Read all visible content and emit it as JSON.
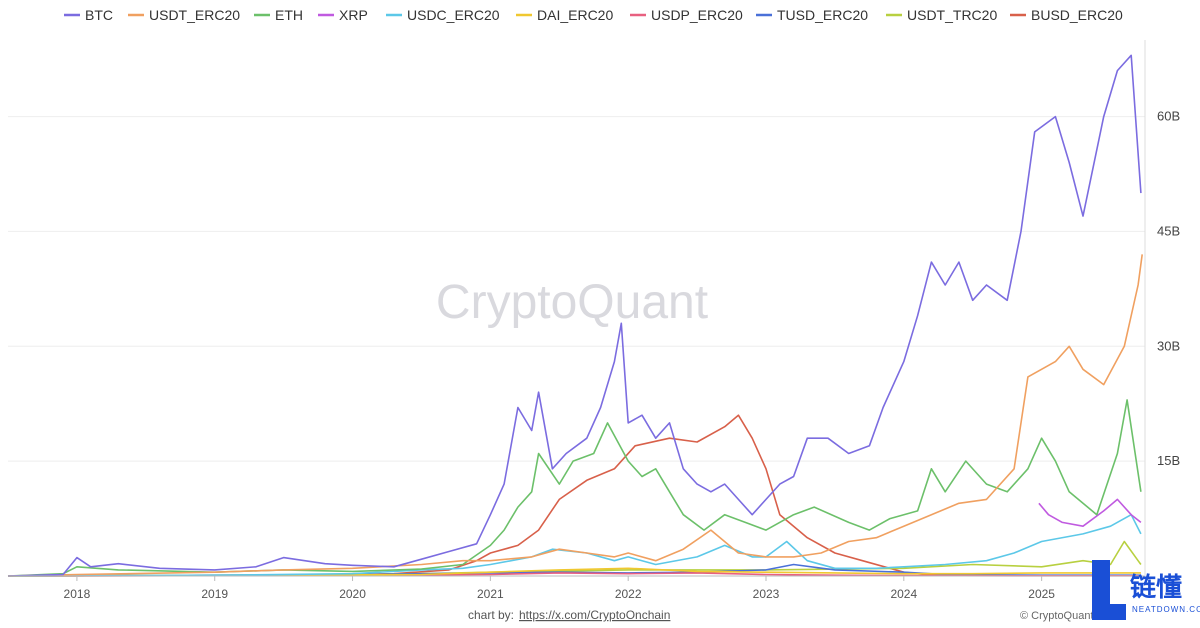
{
  "watermark": "CryptoQuant",
  "credit": {
    "prefix": "chart by:",
    "link": "https://x.com/CryptoOnchain"
  },
  "copyright": "© CryptoQuant",
  "logo": {
    "text": "链懂",
    "sub": "NEATDOWN.COM"
  },
  "chart_data": {
    "type": "line",
    "title": "",
    "xlabel": "",
    "ylabel": "",
    "ylim": [
      0,
      70000000000
    ],
    "yticks": [
      {
        "value": 15000000000,
        "label": "15B"
      },
      {
        "value": 30000000000,
        "label": "30B"
      },
      {
        "value": 45000000000,
        "label": "45B"
      },
      {
        "value": 60000000000,
        "label": "60B"
      }
    ],
    "y_axis_position": "right",
    "xlim": [
      2017.5,
      2025.75
    ],
    "xticks": [
      "2018",
      "2019",
      "2020",
      "2021",
      "2022",
      "2023",
      "2024",
      "2025"
    ],
    "legend_position": "top",
    "grid": "horizontal",
    "series": [
      {
        "name": "BTC",
        "color": "#7b6ce0",
        "points": [
          [
            2017.5,
            0
          ],
          [
            2017.9,
            0.2
          ],
          [
            2018.0,
            2.4
          ],
          [
            2018.1,
            1.2
          ],
          [
            2018.3,
            1.6
          ],
          [
            2018.6,
            1.0
          ],
          [
            2019.0,
            0.8
          ],
          [
            2019.3,
            1.2
          ],
          [
            2019.5,
            2.4
          ],
          [
            2019.8,
            1.6
          ],
          [
            2020.0,
            1.4
          ],
          [
            2020.3,
            1.2
          ],
          [
            2020.5,
            2.2
          ],
          [
            2020.7,
            3.2
          ],
          [
            2020.9,
            4.2
          ],
          [
            2021.0,
            8.0
          ],
          [
            2021.1,
            12.0
          ],
          [
            2021.2,
            22.0
          ],
          [
            2021.3,
            19.0
          ],
          [
            2021.35,
            24.0
          ],
          [
            2021.45,
            14.0
          ],
          [
            2021.55,
            16.0
          ],
          [
            2021.7,
            18.0
          ],
          [
            2021.8,
            22.0
          ],
          [
            2021.9,
            28.0
          ],
          [
            2021.95,
            33.0
          ],
          [
            2022.0,
            20.0
          ],
          [
            2022.1,
            21.0
          ],
          [
            2022.2,
            18.0
          ],
          [
            2022.3,
            20.0
          ],
          [
            2022.4,
            14.0
          ],
          [
            2022.5,
            12.0
          ],
          [
            2022.6,
            11.0
          ],
          [
            2022.7,
            12.0
          ],
          [
            2022.8,
            10.0
          ],
          [
            2022.9,
            8.0
          ],
          [
            2023.0,
            10.0
          ],
          [
            2023.1,
            12.0
          ],
          [
            2023.2,
            13.0
          ],
          [
            2023.3,
            18.0
          ],
          [
            2023.45,
            18.0
          ],
          [
            2023.6,
            16.0
          ],
          [
            2023.75,
            17.0
          ],
          [
            2023.85,
            22.0
          ],
          [
            2024.0,
            28.0
          ],
          [
            2024.1,
            34.0
          ],
          [
            2024.2,
            41.0
          ],
          [
            2024.3,
            38.0
          ],
          [
            2024.4,
            41.0
          ],
          [
            2024.5,
            36.0
          ],
          [
            2024.6,
            38.0
          ],
          [
            2024.75,
            36.0
          ],
          [
            2024.85,
            45.0
          ],
          [
            2024.95,
            58.0
          ],
          [
            2025.1,
            60.0
          ],
          [
            2025.2,
            54.0
          ],
          [
            2025.3,
            47.0
          ],
          [
            2025.45,
            60.0
          ],
          [
            2025.55,
            66.0
          ],
          [
            2025.65,
            68.0
          ],
          [
            2025.72,
            50.0
          ]
        ]
      },
      {
        "name": "USDT_ERC20",
        "color": "#f0a060",
        "points": [
          [
            2017.5,
            0
          ],
          [
            2018.0,
            0.2
          ],
          [
            2019.0,
            0.5
          ],
          [
            2019.5,
            0.8
          ],
          [
            2020.0,
            1.0
          ],
          [
            2020.5,
            1.5
          ],
          [
            2020.8,
            2.0
          ],
          [
            2021.0,
            2.0
          ],
          [
            2021.3,
            2.5
          ],
          [
            2021.5,
            3.5
          ],
          [
            2021.7,
            3.0
          ],
          [
            2021.9,
            2.5
          ],
          [
            2022.0,
            3.0
          ],
          [
            2022.2,
            2.0
          ],
          [
            2022.4,
            3.5
          ],
          [
            2022.6,
            6.0
          ],
          [
            2022.8,
            3.0
          ],
          [
            2023.0,
            2.5
          ],
          [
            2023.2,
            2.5
          ],
          [
            2023.4,
            3.0
          ],
          [
            2023.6,
            4.5
          ],
          [
            2023.8,
            5.0
          ],
          [
            2024.0,
            6.5
          ],
          [
            2024.2,
            8.0
          ],
          [
            2024.4,
            9.5
          ],
          [
            2024.6,
            10.0
          ],
          [
            2024.8,
            14.0
          ],
          [
            2024.9,
            26.0
          ],
          [
            2025.1,
            28.0
          ],
          [
            2025.2,
            30.0
          ],
          [
            2025.3,
            27.0
          ],
          [
            2025.45,
            25.0
          ],
          [
            2025.6,
            30.0
          ],
          [
            2025.7,
            38.0
          ],
          [
            2025.73,
            42.0
          ]
        ]
      },
      {
        "name": "ETH",
        "color": "#6cc06a",
        "points": [
          [
            2017.5,
            0
          ],
          [
            2017.9,
            0.3
          ],
          [
            2018.0,
            1.2
          ],
          [
            2018.3,
            0.8
          ],
          [
            2019.0,
            0.5
          ],
          [
            2019.5,
            0.8
          ],
          [
            2020.0,
            0.6
          ],
          [
            2020.5,
            0.9
          ],
          [
            2020.8,
            1.5
          ],
          [
            2021.0,
            4.0
          ],
          [
            2021.1,
            6.0
          ],
          [
            2021.2,
            9.0
          ],
          [
            2021.3,
            11.0
          ],
          [
            2021.35,
            16.0
          ],
          [
            2021.5,
            12.0
          ],
          [
            2021.6,
            15.0
          ],
          [
            2021.75,
            16.0
          ],
          [
            2021.85,
            20.0
          ],
          [
            2022.0,
            15.0
          ],
          [
            2022.1,
            13.0
          ],
          [
            2022.2,
            14.0
          ],
          [
            2022.3,
            11.0
          ],
          [
            2022.4,
            8.0
          ],
          [
            2022.55,
            6.0
          ],
          [
            2022.7,
            8.0
          ],
          [
            2022.85,
            7.0
          ],
          [
            2023.0,
            6.0
          ],
          [
            2023.2,
            8.0
          ],
          [
            2023.35,
            9.0
          ],
          [
            2023.6,
            7.0
          ],
          [
            2023.75,
            6.0
          ],
          [
            2023.9,
            7.5
          ],
          [
            2024.1,
            8.5
          ],
          [
            2024.2,
            14.0
          ],
          [
            2024.3,
            11.0
          ],
          [
            2024.45,
            15.0
          ],
          [
            2024.6,
            12.0
          ],
          [
            2024.75,
            11.0
          ],
          [
            2024.9,
            14.0
          ],
          [
            2025.0,
            18.0
          ],
          [
            2025.1,
            15.0
          ],
          [
            2025.2,
            11.0
          ],
          [
            2025.4,
            8.0
          ],
          [
            2025.55,
            16.0
          ],
          [
            2025.62,
            23.0
          ],
          [
            2025.72,
            11.0
          ]
        ]
      },
      {
        "name": "XRP",
        "color": "#c05ae0",
        "points": [
          [
            2024.98,
            9.5
          ],
          [
            2025.05,
            8.0
          ],
          [
            2025.15,
            7.0
          ],
          [
            2025.3,
            6.5
          ],
          [
            2025.45,
            8.5
          ],
          [
            2025.55,
            10.0
          ],
          [
            2025.65,
            8.0
          ],
          [
            2025.72,
            7.0
          ]
        ]
      },
      {
        "name": "USDC_ERC20",
        "color": "#5cc8e8",
        "points": [
          [
            2017.5,
            0
          ],
          [
            2019.0,
            0.1
          ],
          [
            2020.0,
            0.3
          ],
          [
            2020.5,
            0.8
          ],
          [
            2020.8,
            1.0
          ],
          [
            2021.0,
            1.5
          ],
          [
            2021.3,
            2.5
          ],
          [
            2021.45,
            3.5
          ],
          [
            2021.7,
            3.0
          ],
          [
            2021.9,
            2.0
          ],
          [
            2022.0,
            2.5
          ],
          [
            2022.2,
            1.5
          ],
          [
            2022.5,
            2.5
          ],
          [
            2022.7,
            4.0
          ],
          [
            2022.9,
            2.5
          ],
          [
            2023.0,
            2.5
          ],
          [
            2023.15,
            4.5
          ],
          [
            2023.3,
            2.0
          ],
          [
            2023.5,
            1.0
          ],
          [
            2023.8,
            1.0
          ],
          [
            2024.0,
            1.2
          ],
          [
            2024.3,
            1.5
          ],
          [
            2024.6,
            2.0
          ],
          [
            2024.8,
            3.0
          ],
          [
            2025.0,
            4.5
          ],
          [
            2025.3,
            5.5
          ],
          [
            2025.5,
            6.5
          ],
          [
            2025.65,
            8.0
          ],
          [
            2025.72,
            5.5
          ]
        ]
      },
      {
        "name": "DAI_ERC20",
        "color": "#f0c830",
        "points": [
          [
            2017.5,
            0
          ],
          [
            2020.5,
            0.2
          ],
          [
            2021.0,
            0.5
          ],
          [
            2021.5,
            0.8
          ],
          [
            2022.0,
            1.0
          ],
          [
            2022.5,
            0.6
          ],
          [
            2023.0,
            0.5
          ],
          [
            2023.5,
            0.4
          ],
          [
            2024.0,
            0.3
          ],
          [
            2024.5,
            0.3
          ],
          [
            2025.0,
            0.4
          ],
          [
            2025.72,
            0.4
          ]
        ]
      },
      {
        "name": "USDP_ERC20",
        "color": "#e86080",
        "points": [
          [
            2017.5,
            0
          ],
          [
            2019.0,
            0.05
          ],
          [
            2020.0,
            0.1
          ],
          [
            2021.0,
            0.2
          ],
          [
            2021.5,
            0.4
          ],
          [
            2022.0,
            0.3
          ],
          [
            2022.5,
            0.4
          ],
          [
            2023.0,
            0.2
          ],
          [
            2023.5,
            0.1
          ],
          [
            2024.0,
            0.05
          ],
          [
            2025.0,
            0.03
          ],
          [
            2025.72,
            0.03
          ]
        ]
      },
      {
        "name": "TUSD_ERC20",
        "color": "#4a70d8",
        "points": [
          [
            2017.5,
            0
          ],
          [
            2019.0,
            0.1
          ],
          [
            2020.0,
            0.2
          ],
          [
            2021.0,
            0.4
          ],
          [
            2021.5,
            0.5
          ],
          [
            2022.0,
            0.4
          ],
          [
            2022.5,
            0.5
          ],
          [
            2023.0,
            0.8
          ],
          [
            2023.2,
            1.5
          ],
          [
            2023.5,
            0.8
          ],
          [
            2024.0,
            0.5
          ],
          [
            2024.3,
            0.2
          ],
          [
            2025.0,
            0.1
          ],
          [
            2025.72,
            0.1
          ]
        ]
      },
      {
        "name": "USDT_TRC20",
        "color": "#b8d040",
        "points": [
          [
            2017.5,
            0
          ],
          [
            2019.5,
            0.1
          ],
          [
            2020.5,
            0.3
          ],
          [
            2021.0,
            0.5
          ],
          [
            2022.0,
            0.8
          ],
          [
            2023.0,
            0.8
          ],
          [
            2024.0,
            1.0
          ],
          [
            2024.5,
            1.5
          ],
          [
            2025.0,
            1.2
          ],
          [
            2025.3,
            2.0
          ],
          [
            2025.5,
            1.5
          ],
          [
            2025.6,
            4.5
          ],
          [
            2025.7,
            2.0
          ],
          [
            2025.72,
            1.5
          ]
        ]
      },
      {
        "name": "BUSD_ERC20",
        "color": "#d8604a",
        "points": [
          [
            2017.5,
            0
          ],
          [
            2019.8,
            0.1
          ],
          [
            2020.3,
            0.3
          ],
          [
            2020.7,
            0.8
          ],
          [
            2020.9,
            2.0
          ],
          [
            2021.0,
            3.0
          ],
          [
            2021.2,
            4.0
          ],
          [
            2021.35,
            6.0
          ],
          [
            2021.5,
            10.0
          ],
          [
            2021.7,
            12.5
          ],
          [
            2021.9,
            14.0
          ],
          [
            2022.05,
            17.0
          ],
          [
            2022.3,
            18.0
          ],
          [
            2022.5,
            17.5
          ],
          [
            2022.7,
            19.5
          ],
          [
            2022.8,
            21.0
          ],
          [
            2022.9,
            18.0
          ],
          [
            2023.0,
            14.0
          ],
          [
            2023.1,
            8.0
          ],
          [
            2023.3,
            5.0
          ],
          [
            2023.5,
            3.0
          ],
          [
            2023.7,
            2.0
          ],
          [
            2023.9,
            1.0
          ],
          [
            2024.0,
            0.5
          ],
          [
            2024.2,
            0.1
          ],
          [
            2025.72,
            0.05
          ]
        ]
      }
    ]
  }
}
